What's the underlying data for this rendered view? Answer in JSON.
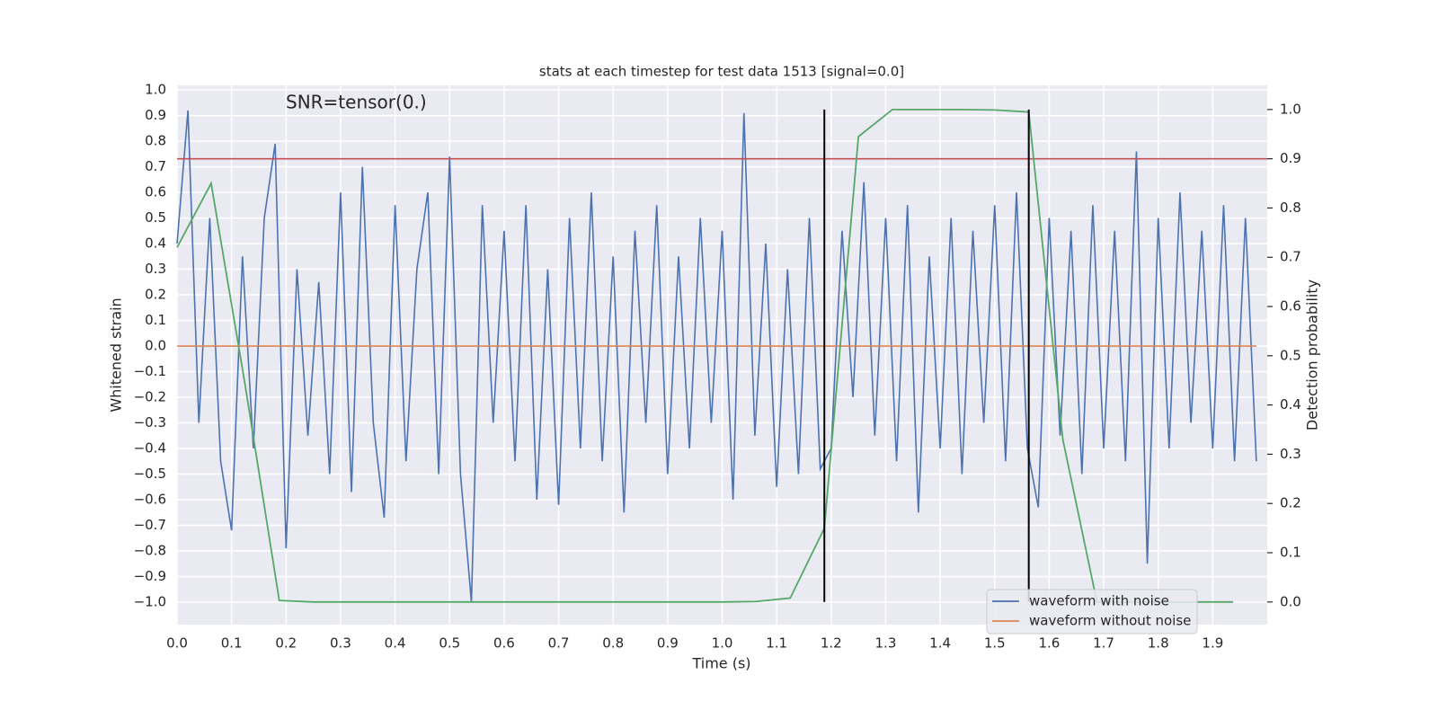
{
  "chart_data": {
    "type": "line",
    "title": "stats at each timestep for test data 1513 [signal=0.0]",
    "annotation": "SNR=tensor(0.)",
    "xlabel": "Time (s)",
    "ylabel": "Whitened strain",
    "y2label": "Detection probability",
    "xlim": [
      0,
      2.0
    ],
    "ylim": [
      -1.088,
      1.018
    ],
    "y2lim": [
      -0.046,
      1.049
    ],
    "xticks": [
      {
        "value": 0,
        "label": "0.0"
      },
      0.1,
      0.2,
      0.3,
      0.4,
      0.5,
      0.6,
      0.7,
      0.8,
      0.9,
      {
        "value": 1,
        "label": "1.0"
      },
      1.1,
      1.2,
      1.3,
      1.4,
      1.5,
      1.6,
      1.7,
      1.8,
      1.9
    ],
    "yticks": [
      {
        "value": -1,
        "label": "−1.0"
      },
      {
        "value": -0.9,
        "label": "−0.9"
      },
      {
        "value": -0.8,
        "label": "−0.8"
      },
      {
        "value": -0.7,
        "label": "−0.7"
      },
      {
        "value": -0.6,
        "label": "−0.6"
      },
      {
        "value": -0.5,
        "label": "−0.5"
      },
      {
        "value": -0.4,
        "label": "−0.4"
      },
      {
        "value": -0.3,
        "label": "−0.3"
      },
      {
        "value": -0.2,
        "label": "−0.2"
      },
      {
        "value": -0.1,
        "label": "−0.1"
      },
      {
        "value": 0,
        "label": "0.0"
      },
      0.1,
      0.2,
      0.3,
      0.4,
      0.5,
      0.6,
      0.7,
      0.8,
      0.9,
      {
        "value": 1,
        "label": "1.0"
      }
    ],
    "y2ticks": [
      {
        "value": 0,
        "label": "0.0"
      },
      0.1,
      0.2,
      0.3,
      0.4,
      0.5,
      0.6,
      0.7,
      0.8,
      0.9,
      {
        "value": 1,
        "label": "1.0"
      }
    ],
    "grid": true,
    "legend": "lower right",
    "series": [
      {
        "name": "waveform with noise",
        "color": "#4c72b0",
        "x": [
          0,
          0.02,
          0.04,
          0.06,
          0.08,
          0.1,
          0.12,
          0.14,
          0.16,
          0.18,
          0.2,
          0.22,
          0.24,
          0.26,
          0.28,
          0.3,
          0.32,
          0.34,
          0.36,
          0.38,
          0.4,
          0.42,
          0.44,
          0.46,
          0.48,
          0.5,
          0.52,
          0.54,
          0.56,
          0.58,
          0.6,
          0.62,
          0.64,
          0.66,
          0.68,
          0.7,
          0.72,
          0.74,
          0.76,
          0.78,
          0.8,
          0.82,
          0.84,
          0.86,
          0.88,
          0.9,
          0.92,
          0.94,
          0.96,
          0.98,
          1.0,
          1.02,
          1.04,
          1.06,
          1.08,
          1.1,
          1.12,
          1.14,
          1.16,
          1.18,
          1.2,
          1.22,
          1.24,
          1.26,
          1.28,
          1.3,
          1.32,
          1.34,
          1.36,
          1.38,
          1.4,
          1.42,
          1.44,
          1.46,
          1.48,
          1.5,
          1.52,
          1.54,
          1.56,
          1.58,
          1.6,
          1.62,
          1.64,
          1.66,
          1.68,
          1.7,
          1.72,
          1.74,
          1.76,
          1.78,
          1.8,
          1.82,
          1.84,
          1.86,
          1.88,
          1.9,
          1.92,
          1.94,
          1.96,
          1.98
        ],
        "values": [
          0.4,
          0.92,
          -0.3,
          0.5,
          -0.45,
          -0.72,
          0.35,
          -0.4,
          0.5,
          0.79,
          -0.79,
          0.3,
          -0.35,
          0.25,
          -0.5,
          0.6,
          -0.57,
          0.7,
          -0.3,
          -0.67,
          0.55,
          -0.45,
          0.3,
          0.6,
          -0.5,
          0.74,
          -0.5,
          -1.0,
          0.55,
          -0.3,
          0.45,
          -0.45,
          0.55,
          -0.6,
          0.3,
          -0.62,
          0.5,
          -0.4,
          0.6,
          -0.45,
          0.35,
          -0.65,
          0.45,
          -0.3,
          0.55,
          -0.5,
          0.35,
          -0.4,
          0.5,
          -0.3,
          0.45,
          -0.6,
          0.91,
          -0.35,
          0.4,
          -0.55,
          0.3,
          -0.5,
          0.5,
          -0.48,
          -0.4,
          0.45,
          -0.2,
          0.64,
          -0.35,
          0.5,
          -0.45,
          0.55,
          -0.65,
          0.35,
          -0.4,
          0.5,
          -0.5,
          0.45,
          -0.3,
          0.55,
          -0.45,
          0.6,
          -0.4,
          -0.63,
          0.5,
          -0.35,
          0.45,
          -0.5,
          0.55,
          -0.4,
          0.45,
          -0.45,
          0.76,
          -0.85,
          0.5,
          -0.4,
          0.6,
          -0.3,
          0.45,
          -0.4,
          0.55,
          -0.45,
          0.5,
          -0.45
        ]
      },
      {
        "name": "waveform without noise",
        "color": "#dd8452",
        "x": [
          0,
          1.98
        ],
        "values": [
          0,
          0
        ]
      }
    ],
    "probability": {
      "color": "#55a868",
      "axis": "y2",
      "x": [
        0,
        0.0625,
        0.125,
        0.1875,
        0.25,
        0.3125,
        0.375,
        0.4375,
        0.5,
        0.5625,
        0.625,
        0.6875,
        0.75,
        0.8125,
        0.875,
        0.9375,
        1.0,
        1.0625,
        1.125,
        1.1875,
        1.25,
        1.3125,
        1.375,
        1.4375,
        1.5,
        1.5625,
        1.625,
        1.6875,
        1.75,
        1.8125,
        1.875,
        1.9375
      ],
      "values": [
        0.72,
        0.85,
        0.44,
        0.003,
        0,
        0,
        0,
        0,
        0,
        0,
        0,
        0,
        0,
        0,
        0,
        0,
        0,
        0.001,
        0.008,
        0.15,
        0.945,
        1.0,
        1.0,
        1.0,
        0.999,
        0.995,
        0.33,
        0,
        0,
        0,
        0,
        0
      ]
    },
    "threshold": {
      "value": 0.9,
      "axis": "y2",
      "color": "#c44e52"
    },
    "detections": {
      "x": [
        1.1875,
        1.5625
      ],
      "color": "#000000"
    }
  }
}
